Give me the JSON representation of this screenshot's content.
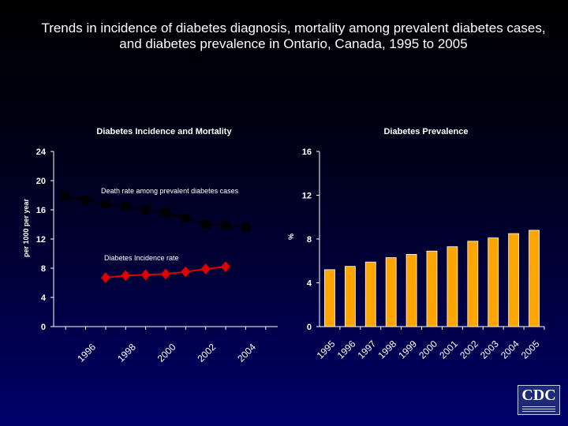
{
  "title": "Trends in incidence of diabetes diagnosis, mortality among prevalent diabetes cases, and diabetes prevalence  in Ontario, Canada, 1995 to 2005",
  "logo": {
    "name": "cdc-logo",
    "text": "CDC"
  },
  "chart_data": [
    {
      "type": "line",
      "title": "Diabetes Incidence and Mortality",
      "ylabel": "per 1000 per year",
      "xlabel": "",
      "ylim": [
        0,
        24
      ],
      "yticks": [
        0,
        4,
        8,
        12,
        16,
        20,
        24
      ],
      "x": [
        1995,
        1996,
        1997,
        1998,
        1999,
        2000,
        2001,
        2002,
        2003,
        2004,
        2005
      ],
      "xtick_labels": [
        "1996",
        "1998",
        "2000",
        "2002",
        "2004"
      ],
      "xtick_values": [
        1996,
        1998,
        2000,
        2002,
        2004
      ],
      "grid": false,
      "series": [
        {
          "name": "Death rate among prevalent diabetes cases",
          "color": "#000000",
          "marker": "square",
          "x": [
            1995,
            1996,
            1997,
            1998,
            1999,
            2000,
            2001,
            2002,
            2003,
            2004
          ],
          "values": [
            17.8,
            17.4,
            16.8,
            16.5,
            16.0,
            15.6,
            14.9,
            14.0,
            13.9,
            13.6
          ]
        },
        {
          "name": "Diabetes Incidence rate",
          "color": "#dd0000",
          "marker": "diamond",
          "x": [
            1997,
            1998,
            1999,
            2000,
            2001,
            2002,
            2003
          ],
          "values": [
            6.7,
            7.0,
            7.1,
            7.2,
            7.5,
            7.9,
            8.2
          ]
        }
      ]
    },
    {
      "type": "bar",
      "title": "Diabetes Prevalence",
      "ylabel": "%",
      "xlabel": "",
      "ylim": [
        0,
        16
      ],
      "yticks": [
        0,
        4,
        8,
        12,
        16
      ],
      "categories": [
        "1995",
        "1996",
        "1997",
        "1998",
        "1999",
        "2000",
        "2001",
        "2002",
        "2003",
        "2004",
        "2005"
      ],
      "values": [
        5.2,
        5.5,
        5.9,
        6.3,
        6.6,
        6.9,
        7.3,
        7.8,
        8.1,
        8.5,
        8.8
      ],
      "color": "#ffa500",
      "grid": false
    }
  ]
}
